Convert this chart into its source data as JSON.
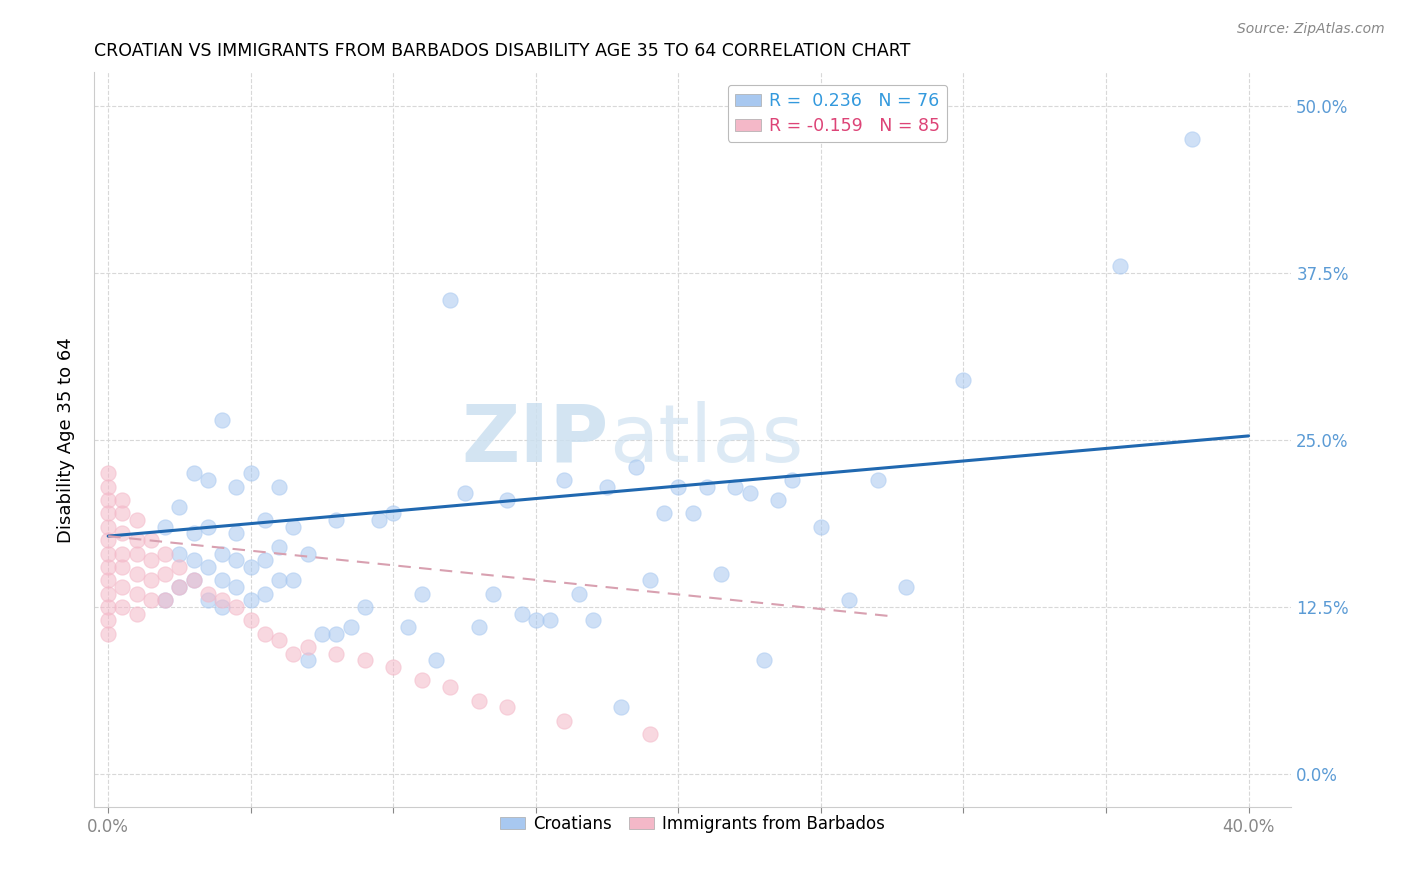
{
  "title": "CROATIAN VS IMMIGRANTS FROM BARBADOS DISABILITY AGE 35 TO 64 CORRELATION CHART",
  "source": "Source: ZipAtlas.com",
  "ylabel": "Disability Age 35 to 64",
  "xlim": [
    -0.005,
    0.415
  ],
  "ylim": [
    -0.025,
    0.525
  ],
  "x_ticks": [
    0.0,
    0.05,
    0.1,
    0.15,
    0.2,
    0.25,
    0.3,
    0.35,
    0.4
  ],
  "y_ticks": [
    0.0,
    0.125,
    0.25,
    0.375,
    0.5
  ],
  "y_tick_labels": [
    "0.0%",
    "12.5%",
    "25.0%",
    "37.5%",
    "50.0%"
  ],
  "x_tick_labels": [
    "0.0%",
    "",
    "",
    "",
    "",
    "",
    "",
    "",
    "40.0%"
  ],
  "watermark": "ZIPatlas",
  "blue_color": "#a8c8f0",
  "pink_color": "#f4b8c8",
  "blue_line_color": "#2068b0",
  "pink_line_color": "#d8a0b0",
  "tick_color": "#5b9bd5",
  "grid_color": "#d8d8d8",
  "scatter_size": 120,
  "scatter_alpha": 0.55,
  "blue_line_x": [
    0.0,
    0.4
  ],
  "blue_line_y": [
    0.178,
    0.253
  ],
  "pink_line_x": [
    0.0,
    0.275
  ],
  "pink_line_y": [
    0.178,
    0.118
  ],
  "croatians_x": [
    0.02,
    0.02,
    0.025,
    0.025,
    0.025,
    0.03,
    0.03,
    0.03,
    0.03,
    0.035,
    0.035,
    0.035,
    0.035,
    0.04,
    0.04,
    0.04,
    0.04,
    0.045,
    0.045,
    0.045,
    0.045,
    0.05,
    0.05,
    0.05,
    0.055,
    0.055,
    0.055,
    0.06,
    0.06,
    0.06,
    0.065,
    0.065,
    0.07,
    0.07,
    0.075,
    0.08,
    0.08,
    0.085,
    0.09,
    0.095,
    0.1,
    0.105,
    0.11,
    0.115,
    0.12,
    0.125,
    0.13,
    0.135,
    0.14,
    0.145,
    0.15,
    0.155,
    0.16,
    0.165,
    0.17,
    0.175,
    0.18,
    0.185,
    0.19,
    0.195,
    0.2,
    0.205,
    0.21,
    0.215,
    0.22,
    0.225,
    0.23,
    0.235,
    0.24,
    0.25,
    0.26,
    0.27,
    0.28,
    0.3,
    0.355,
    0.38
  ],
  "croatians_y": [
    0.13,
    0.185,
    0.14,
    0.165,
    0.2,
    0.145,
    0.16,
    0.18,
    0.225,
    0.13,
    0.155,
    0.185,
    0.22,
    0.125,
    0.145,
    0.165,
    0.265,
    0.14,
    0.16,
    0.18,
    0.215,
    0.13,
    0.155,
    0.225,
    0.135,
    0.16,
    0.19,
    0.145,
    0.17,
    0.215,
    0.145,
    0.185,
    0.085,
    0.165,
    0.105,
    0.105,
    0.19,
    0.11,
    0.125,
    0.19,
    0.195,
    0.11,
    0.135,
    0.085,
    0.355,
    0.21,
    0.11,
    0.135,
    0.205,
    0.12,
    0.115,
    0.115,
    0.22,
    0.135,
    0.115,
    0.215,
    0.05,
    0.23,
    0.145,
    0.195,
    0.215,
    0.195,
    0.215,
    0.15,
    0.215,
    0.21,
    0.085,
    0.205,
    0.22,
    0.185,
    0.13,
    0.22,
    0.14,
    0.295,
    0.38,
    0.475
  ],
  "barbados_x": [
    0.0,
    0.0,
    0.0,
    0.0,
    0.0,
    0.0,
    0.0,
    0.0,
    0.0,
    0.0,
    0.0,
    0.0,
    0.0,
    0.005,
    0.005,
    0.005,
    0.005,
    0.005,
    0.005,
    0.005,
    0.01,
    0.01,
    0.01,
    0.01,
    0.01,
    0.01,
    0.015,
    0.015,
    0.015,
    0.015,
    0.02,
    0.02,
    0.02,
    0.025,
    0.025,
    0.03,
    0.035,
    0.04,
    0.045,
    0.05,
    0.055,
    0.06,
    0.065,
    0.07,
    0.08,
    0.09,
    0.1,
    0.11,
    0.12,
    0.13,
    0.14,
    0.16,
    0.19
  ],
  "barbados_y": [
    0.225,
    0.215,
    0.205,
    0.195,
    0.185,
    0.175,
    0.165,
    0.155,
    0.145,
    0.135,
    0.125,
    0.115,
    0.105,
    0.205,
    0.195,
    0.18,
    0.165,
    0.155,
    0.14,
    0.125,
    0.19,
    0.175,
    0.165,
    0.15,
    0.135,
    0.12,
    0.175,
    0.16,
    0.145,
    0.13,
    0.165,
    0.15,
    0.13,
    0.155,
    0.14,
    0.145,
    0.135,
    0.13,
    0.125,
    0.115,
    0.105,
    0.1,
    0.09,
    0.095,
    0.09,
    0.085,
    0.08,
    0.07,
    0.065,
    0.055,
    0.05,
    0.04,
    0.03
  ]
}
